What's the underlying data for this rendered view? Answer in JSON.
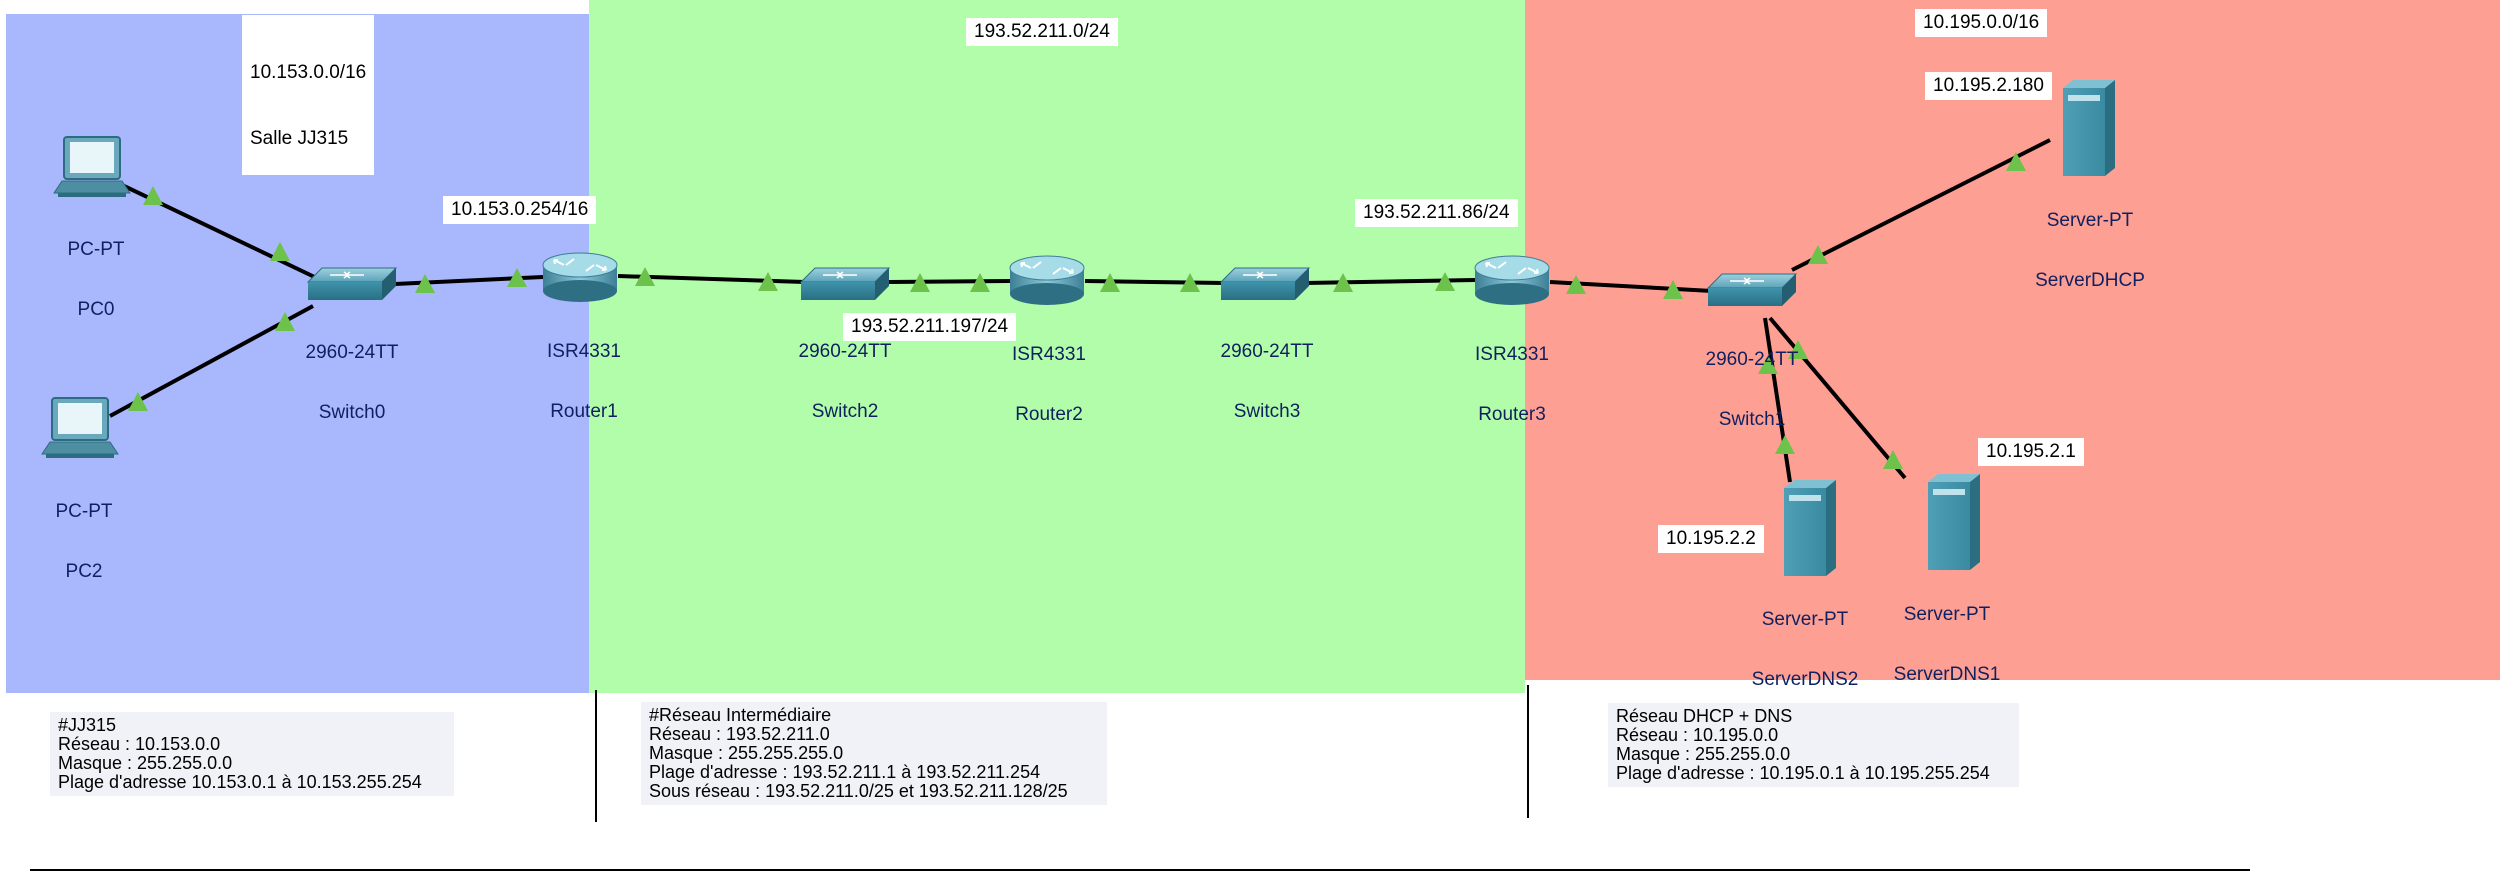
{
  "zones": {
    "left": {
      "subnet": "10.153.0.0/16",
      "room": "Salle JJ315",
      "color": "#a9b7fd"
    },
    "middle": {
      "subnet": "193.52.211.0/24",
      "color": "#b2fdaa"
    },
    "right": {
      "subnet": "10.195.0.0/16",
      "color": "#fe9f94"
    }
  },
  "ip_labels": {
    "router1": "10.153.0.254/16",
    "router2": "193.52.211.197/24",
    "router3": "193.52.211.86/24",
    "server_dhcp": "10.195.2.180",
    "server_dns1": "10.195.2.1",
    "server_dns2": "10.195.2.2"
  },
  "devices": {
    "pc0": {
      "model": "PC-PT",
      "name": "PC0",
      "icon": "pc-icon"
    },
    "pc2": {
      "model": "PC-PT",
      "name": "PC2",
      "icon": "pc-icon"
    },
    "switch0": {
      "model": "2960-24TT",
      "name": "Switch0",
      "icon": "switch-icon"
    },
    "router1": {
      "model": "ISR4331",
      "name": "Router1",
      "icon": "router-icon"
    },
    "switch2": {
      "model": "2960-24TT",
      "name": "Switch2",
      "icon": "switch-icon"
    },
    "router2": {
      "model": "ISR4331",
      "name": "Router2",
      "icon": "router-icon"
    },
    "switch3": {
      "model": "2960-24TT",
      "name": "Switch3",
      "icon": "switch-icon"
    },
    "router3": {
      "model": "ISR4331",
      "name": "Router3",
      "icon": "router-icon"
    },
    "switch1": {
      "model": "2960-24TT",
      "name": "Switch1",
      "icon": "switch-icon"
    },
    "server_dhcp": {
      "model": "Server-PT",
      "name": "ServerDHCP",
      "icon": "server-icon"
    },
    "server_dns2": {
      "model": "Server-PT",
      "name": "ServerDNS2",
      "icon": "server-icon"
    },
    "server_dns1": {
      "model": "Server-PT",
      "name": "ServerDNS1",
      "icon": "server-icon"
    }
  },
  "notes": {
    "jj315": {
      "title": "#JJ315",
      "lines": [
        "Réseau : 10.153.0.0",
        "Masque : 255.255.0.0",
        "Plage d'adresse 10.153.0.1 à 10.153.255.254"
      ]
    },
    "intermediaire": {
      "title": "#Réseau Intermédiaire",
      "lines": [
        "Réseau : 193.52.211.0",
        "Masque : 255.255.255.0",
        "Plage d'adresse : 193.52.211.1 à 193.52.211.254",
        "Sous réseau : 193.52.211.0/25 et 193.52.211.128/25"
      ]
    },
    "dhcp_dns": {
      "title": "Réseau DHCP + DNS",
      "lines": [
        "Réseau : 10.195.0.0",
        "Masque : 255.255.0.0",
        "Plage d'adresse : 10.195.0.1 à 10.195.255.254"
      ]
    }
  },
  "colors": {
    "link": "#000000",
    "link_up": "#6cc24a",
    "device_label": "#10205e"
  }
}
